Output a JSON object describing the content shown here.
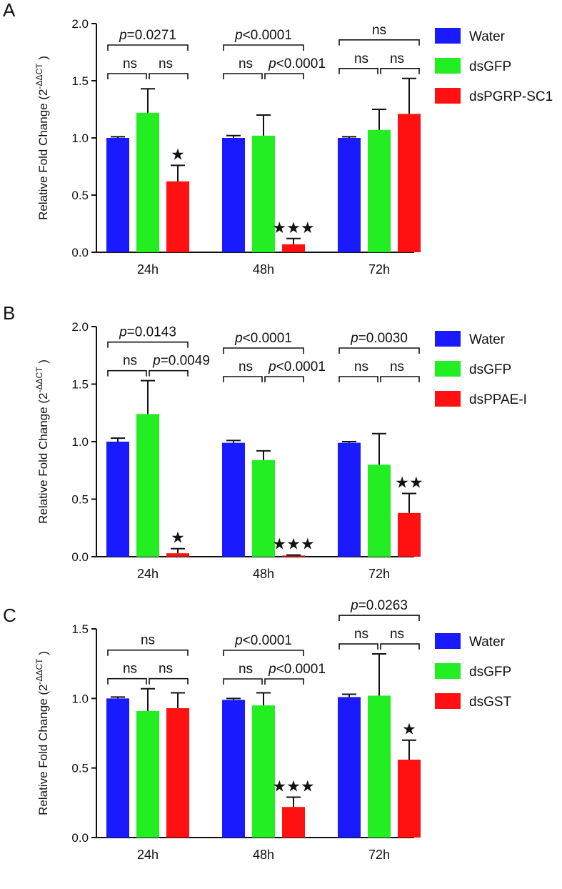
{
  "chart_data": [
    {
      "panel": "A",
      "type": "bar",
      "ylabel": "Relative Fold Change (2",
      "ylabel_sup": "-ΔΔCT",
      "ylabel_end": ")",
      "ylim": [
        0,
        2.0
      ],
      "yticks": [
        "0.0",
        "0.5",
        "1.0",
        "1.5",
        "2.0"
      ],
      "categories": [
        "24h",
        "48h",
        "72h"
      ],
      "series": [
        {
          "name": "Water",
          "color": "#1a1aff",
          "values": [
            1.0,
            1.0,
            1.0
          ],
          "errors": [
            0.01,
            0.02,
            0.01
          ]
        },
        {
          "name": "dsGFP",
          "color": "#22ee22",
          "values": [
            1.22,
            1.02,
            1.07
          ],
          "errors": [
            0.21,
            0.18,
            0.18
          ]
        },
        {
          "name": "dsPGRP-SC1",
          "color": "#ff1111",
          "values": [
            0.62,
            0.07,
            1.21
          ],
          "errors": [
            0.14,
            0.05,
            0.31
          ]
        }
      ],
      "stars": [
        "★",
        "★★★",
        ""
      ],
      "annotations": [
        {
          "top": {
            "prefix": "p",
            "text": "=0.0271"
          },
          "left": "ns",
          "right": "ns"
        },
        {
          "top": {
            "prefix": "p",
            "text": "<0.0001"
          },
          "left": "ns",
          "right": {
            "prefix": "p",
            "text": "<0.0001"
          }
        },
        {
          "top": {
            "prefix": "",
            "text": "ns"
          },
          "left": "ns",
          "right": "ns"
        }
      ]
    },
    {
      "panel": "B",
      "type": "bar",
      "ylabel": "Relative Fold Change (2",
      "ylabel_sup": "-ΔΔCT",
      "ylabel_end": ")",
      "ylim": [
        0,
        2.0
      ],
      "yticks": [
        "0.0",
        "0.5",
        "1.0",
        "1.5",
        "2.0"
      ],
      "categories": [
        "24h",
        "48h",
        "72h"
      ],
      "series": [
        {
          "name": "Water",
          "color": "#1a1aff",
          "values": [
            1.0,
            0.99,
            0.99
          ],
          "errors": [
            0.03,
            0.02,
            0.01
          ]
        },
        {
          "name": "dsGFP",
          "color": "#22ee22",
          "values": [
            1.24,
            0.84,
            0.8
          ],
          "errors": [
            0.29,
            0.08,
            0.27
          ]
        },
        {
          "name": "dsPPAE-I",
          "color": "#ff1111",
          "values": [
            0.03,
            0.01,
            0.38
          ],
          "errors": [
            0.04,
            0.005,
            0.17
          ]
        }
      ],
      "stars": [
        "★",
        "★★★",
        "★★"
      ],
      "annotations": [
        {
          "top": {
            "prefix": "p",
            "text": "=0.0143"
          },
          "left": "ns",
          "right": {
            "prefix": "p",
            "text": "=0.0049"
          }
        },
        {
          "top": {
            "prefix": "p",
            "text": "<0.0001"
          },
          "left": "ns",
          "right": {
            "prefix": "p",
            "text": "<0.0001"
          }
        },
        {
          "top": {
            "prefix": "p",
            "text": "=0.0030"
          },
          "left": "ns",
          "right": "ns"
        }
      ]
    },
    {
      "panel": "C",
      "type": "bar",
      "ylabel": "Relative Fold Change (2",
      "ylabel_sup": "-ΔΔCT",
      "ylabel_end": ")",
      "ylim": [
        0,
        1.5
      ],
      "yticks": [
        "0.0",
        "0.5",
        "1.0",
        "1.5"
      ],
      "categories": [
        "24h",
        "48h",
        "72h"
      ],
      "series": [
        {
          "name": "Water",
          "color": "#1a1aff",
          "values": [
            1.0,
            0.99,
            1.01
          ],
          "errors": [
            0.01,
            0.01,
            0.02
          ]
        },
        {
          "name": "dsGFP",
          "color": "#22ee22",
          "values": [
            0.91,
            0.95,
            1.02
          ],
          "errors": [
            0.16,
            0.09,
            0.3
          ]
        },
        {
          "name": "dsGST",
          "color": "#ff1111",
          "values": [
            0.93,
            0.22,
            0.56
          ],
          "errors": [
            0.11,
            0.07,
            0.14
          ]
        }
      ],
      "stars": [
        "",
        "★★★",
        "★"
      ],
      "annotations": [
        {
          "top": {
            "prefix": "",
            "text": "ns"
          },
          "left": "ns",
          "right": "ns"
        },
        {
          "top": {
            "prefix": "p",
            "text": "<0.0001"
          },
          "left": "ns",
          "right": {
            "prefix": "p",
            "text": "<0.0001"
          }
        },
        {
          "top": {
            "prefix": "p",
            "text": "=0.0263"
          },
          "left": "ns",
          "right": "ns"
        }
      ]
    }
  ]
}
